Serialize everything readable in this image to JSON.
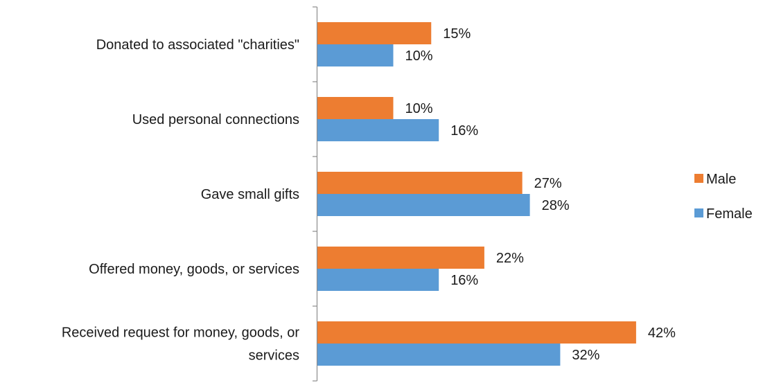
{
  "chart_data": {
    "type": "bar",
    "orientation": "horizontal",
    "categories": [
      "Donated to associated \"charities\"",
      "Used personal connections",
      "Gave small gifts",
      "Offered money, goods, or services",
      "Received request for money, goods, or services"
    ],
    "category_lines": [
      [
        "Donated to associated \"charities\""
      ],
      [
        "Used personal connections"
      ],
      [
        "Gave small gifts"
      ],
      [
        "Offered money, goods, or services"
      ],
      [
        "Received request for money, goods, or",
        "services"
      ]
    ],
    "series": [
      {
        "name": "Male",
        "color": "#ED7D31",
        "values": [
          15,
          10,
          27,
          22,
          42
        ],
        "labels": [
          "15%",
          "10%",
          "27%",
          "22%",
          "42%"
        ]
      },
      {
        "name": "Female",
        "color": "#5B9BD5",
        "values": [
          10,
          16,
          28,
          16,
          32
        ],
        "labels": [
          "10%",
          "16%",
          "28%",
          "16%",
          "32%"
        ]
      }
    ],
    "xlim": [
      0,
      45
    ],
    "grid": false,
    "legend_position": "right",
    "title": "",
    "xlabel": "",
    "ylabel": ""
  }
}
